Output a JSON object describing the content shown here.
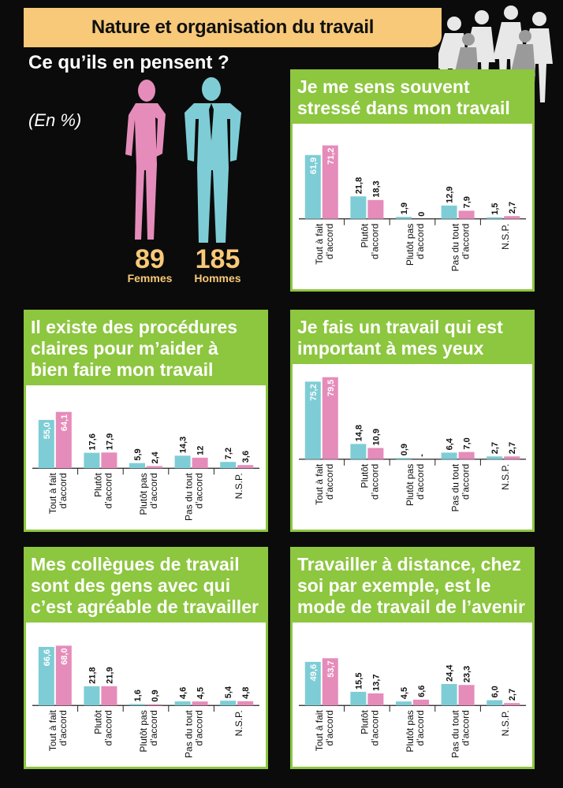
{
  "header": {
    "title": "Nature et organisation du travail",
    "subtitle": "Ce qu’ils en pensent ?",
    "unit": "(En %)"
  },
  "respondents": {
    "women": {
      "count": "89",
      "label": "Femmes"
    },
    "men": {
      "count": "185",
      "label": "Hommes"
    }
  },
  "colors": {
    "men": "#7ecdd6",
    "women": "#e58cba",
    "accent": "#8dc63f",
    "header": "#f8c978"
  },
  "chart_data": [
    {
      "type": "bar",
      "title": "Je me sens souvent stressé dans mon travail",
      "categories": [
        "Tout à fait d’accord",
        "Plutôt d’accord",
        "Plutôt pas d’accord",
        "Pas du tout d’accord",
        "N.S.P."
      ],
      "series": [
        {
          "name": "Hommes",
          "values": [
            61.9,
            21.8,
            1.9,
            12.9,
            1.5
          ],
          "labels": [
            "61,9",
            "21,8",
            "1,9",
            "12,9",
            "1,5"
          ]
        },
        {
          "name": "Femmes",
          "values": [
            71.2,
            18.3,
            0,
            7.9,
            2.7
          ],
          "labels": [
            "71,2",
            "18,3",
            "0",
            "7,9",
            "2,7"
          ]
        }
      ]
    },
    {
      "type": "bar",
      "title": "Il existe des procédures claires pour m’aider à bien faire mon travail",
      "categories": [
        "Tout à fait d’accord",
        "Plutôt d’accord",
        "Plutôt pas d’accord",
        "Pas du tout d’accord",
        "N.S.P."
      ],
      "series": [
        {
          "name": "Hommes",
          "values": [
            55.0,
            17.6,
            5.9,
            14.3,
            7.2
          ],
          "labels": [
            "55,0",
            "17,6",
            "5,9",
            "14,3",
            "7,2"
          ]
        },
        {
          "name": "Femmes",
          "values": [
            64.1,
            17.9,
            2.4,
            12,
            3.6
          ],
          "labels": [
            "64,1",
            "17,9",
            "2,4",
            "12",
            "3,6"
          ]
        }
      ]
    },
    {
      "type": "bar",
      "title": "Je fais un travail qui est important à mes yeux",
      "categories": [
        "Tout à fait d’accord",
        "Plutôt d’accord",
        "Plutôt pas d’accord",
        "Pas du tout d’accord",
        "N.S.P."
      ],
      "series": [
        {
          "name": "Hommes",
          "values": [
            75.2,
            14.8,
            0.9,
            6.4,
            2.7
          ],
          "labels": [
            "75,2",
            "14,8",
            "0,9",
            "6,4",
            "2,7"
          ]
        },
        {
          "name": "Femmes",
          "values": [
            79.5,
            10.9,
            0,
            7.0,
            2.7
          ],
          "labels": [
            "79,5",
            "10,9",
            "-",
            "7,0",
            "2,7"
          ]
        }
      ]
    },
    {
      "type": "bar",
      "title": "Mes collègues de travail sont des gens avec qui c’est agréable de travailler",
      "categories": [
        "Tout à fait d’accord",
        "Plutôt d’accord",
        "Plutôt pas d’accord",
        "Pas du tout d’accord",
        "N.S.P."
      ],
      "series": [
        {
          "name": "Hommes",
          "values": [
            66.6,
            21.8,
            1.6,
            4.6,
            5.4
          ],
          "labels": [
            "66,6",
            "21,8",
            "1,6",
            "4,6",
            "5,4"
          ]
        },
        {
          "name": "Femmes",
          "values": [
            68.0,
            21.9,
            0.9,
            4.5,
            4.8
          ],
          "labels": [
            "68,0",
            "21,9",
            "0,9",
            "4,5",
            "4,8"
          ]
        }
      ]
    },
    {
      "type": "bar",
      "title": "Travailler à distance, chez soi par exemple, est le mode de travail de l’avenir",
      "categories": [
        "Tout à fait d’accord",
        "Plutôt d’accord",
        "Plutôt pas d’accord",
        "Pas du tout d’accord",
        "N.S.P."
      ],
      "series": [
        {
          "name": "Hommes",
          "values": [
            49.6,
            15.5,
            4.5,
            24.4,
            6.0
          ],
          "labels": [
            "49,6",
            "15,5",
            "4,5",
            "24,4",
            "6,0"
          ]
        },
        {
          "name": "Femmes",
          "values": [
            53.7,
            13.7,
            6.6,
            23.3,
            2.7
          ],
          "labels": [
            "53,7",
            "13,7",
            "6,6",
            "23,3",
            "2,7"
          ]
        }
      ]
    }
  ]
}
